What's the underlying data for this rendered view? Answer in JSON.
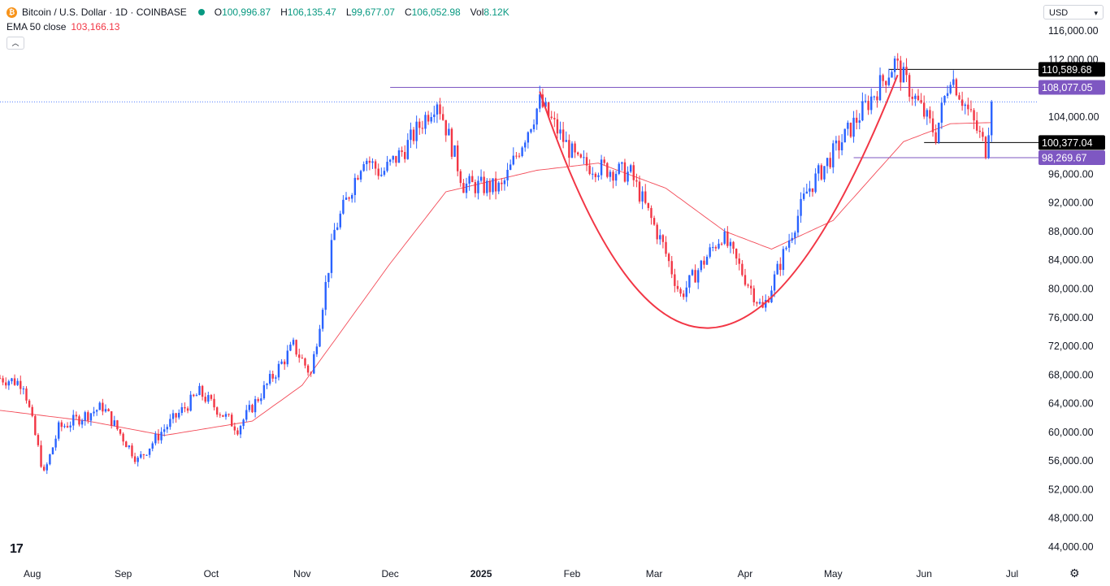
{
  "header": {
    "title": "Bitcoin / U.S. Dollar · 1D · COINBASE",
    "open_label": "O",
    "open": "100,996.87",
    "high_label": "H",
    "high": "106,135.47",
    "low_label": "L",
    "low": "99,677.07",
    "close_label": "C",
    "close": "106,052.98",
    "vol_label": "Vol",
    "vol": "8.12K",
    "ema_label": "EMA 50 close",
    "ema_value": "103,166.13"
  },
  "currency": "USD",
  "colors": {
    "up": "#2962ff",
    "down": "#f23645",
    "ema": "#f23645",
    "cup": "#f23645",
    "resistance": "#7e57c2",
    "label_purple": "#7e57c2",
    "label_black": "#000000",
    "grid_text": "#131722"
  },
  "icons": {
    "logo": "tradingview-logo-icon",
    "settings": "gear-icon",
    "collapse": "chevron-up-icon"
  },
  "chart_data": {
    "type": "candlestick",
    "title": "Bitcoin / U.S. Dollar · 1D · COINBASE",
    "ylim": [
      42000,
      118000
    ],
    "y_ticks": [
      "44,000.00",
      "48,000.00",
      "52,000.00",
      "56,000.00",
      "60,000.00",
      "64,000.00",
      "68,000.00",
      "72,000.00",
      "76,000.00",
      "80,000.00",
      "84,000.00",
      "88,000.00",
      "92,000.00",
      "96,000.00",
      "104,000.00",
      "112,000.00",
      "116,000.00"
    ],
    "y_tick_values": [
      44000,
      48000,
      52000,
      56000,
      60000,
      64000,
      68000,
      72000,
      76000,
      80000,
      84000,
      88000,
      92000,
      96000,
      104000,
      112000,
      116000
    ],
    "x_ticks": [
      {
        "label": "Aug",
        "date": "2024-08-01"
      },
      {
        "label": "Sep",
        "date": "2024-09-01"
      },
      {
        "label": "Oct",
        "date": "2024-10-01"
      },
      {
        "label": "Nov",
        "date": "2024-11-01"
      },
      {
        "label": "Dec",
        "date": "2024-12-01"
      },
      {
        "label": "2025",
        "date": "2025-01-01"
      },
      {
        "label": "Feb",
        "date": "2025-02-01"
      },
      {
        "label": "Mar",
        "date": "2025-03-01"
      },
      {
        "label": "Apr",
        "date": "2025-04-01"
      },
      {
        "label": "May",
        "date": "2025-05-01"
      },
      {
        "label": "Jun",
        "date": "2025-06-01"
      },
      {
        "label": "Jul",
        "date": "2025-07-01"
      }
    ],
    "x_range": [
      "2024-07-21",
      "2025-07-10"
    ],
    "price_anchors": [
      [
        "2024-07-21",
        67500
      ],
      [
        "2024-07-29",
        66800
      ],
      [
        "2024-08-05",
        54000
      ],
      [
        "2024-08-10",
        60500
      ],
      [
        "2024-08-25",
        63500
      ],
      [
        "2024-09-06",
        56000
      ],
      [
        "2024-09-14",
        60000
      ],
      [
        "2024-09-27",
        65500
      ],
      [
        "2024-10-10",
        60500
      ],
      [
        "2024-10-29",
        72000
      ],
      [
        "2024-11-04",
        68000
      ],
      [
        "2024-11-12",
        88000
      ],
      [
        "2024-11-22",
        98500
      ],
      [
        "2024-11-28",
        96000
      ],
      [
        "2024-12-06",
        99500
      ],
      [
        "2024-12-17",
        106500
      ],
      [
        "2024-12-26",
        94500
      ],
      [
        "2025-01-08",
        94000
      ],
      [
        "2025-01-21",
        106000
      ],
      [
        "2025-02-03",
        97500
      ],
      [
        "2025-02-21",
        96000
      ],
      [
        "2025-03-04",
        86000
      ],
      [
        "2025-03-10",
        79000
      ],
      [
        "2025-03-24",
        87500
      ],
      [
        "2025-04-07",
        77000
      ],
      [
        "2025-04-22",
        93500
      ],
      [
        "2025-05-08",
        103000
      ],
      [
        "2025-05-22",
        111500
      ],
      [
        "2025-06-05",
        101500
      ],
      [
        "2025-06-10",
        110000
      ],
      [
        "2025-06-22",
        99500
      ],
      [
        "2025-06-24",
        106050
      ]
    ],
    "ema50_anchors": [
      [
        "2024-07-21",
        63000
      ],
      [
        "2024-08-20",
        61500
      ],
      [
        "2024-09-15",
        59500
      ],
      [
        "2024-10-15",
        61500
      ],
      [
        "2024-11-01",
        66500
      ],
      [
        "2024-12-01",
        83500
      ],
      [
        "2024-12-20",
        93500
      ],
      [
        "2025-01-20",
        96500
      ],
      [
        "2025-02-10",
        97500
      ],
      [
        "2025-03-05",
        94000
      ],
      [
        "2025-03-25",
        88000
      ],
      [
        "2025-04-10",
        85500
      ],
      [
        "2025-05-01",
        89500
      ],
      [
        "2025-05-25",
        100500
      ],
      [
        "2025-06-10",
        103000
      ],
      [
        "2025-06-24",
        103166
      ]
    ],
    "cup_curve": [
      [
        "2025-01-21",
        107500
      ],
      [
        "2025-03-20",
        74500
      ],
      [
        "2025-05-23",
        109800
      ]
    ],
    "horizontal_levels": [
      {
        "label": "110,589.68",
        "value": 110589.68,
        "style": "black",
        "from": "2025-05-20"
      },
      {
        "label": "108,077.05",
        "value": 108077.05,
        "style": "purple",
        "from": "2024-12-01"
      },
      {
        "label": "100,377.04",
        "value": 100377.04,
        "style": "black",
        "from": "2025-06-01"
      },
      {
        "label": "98,269.67",
        "value": 98269.67,
        "style": "purple",
        "from": "2025-05-08"
      }
    ],
    "last_price": 106052.98,
    "ema_last": 103166.13,
    "grid": false,
    "legend": "top-left"
  }
}
